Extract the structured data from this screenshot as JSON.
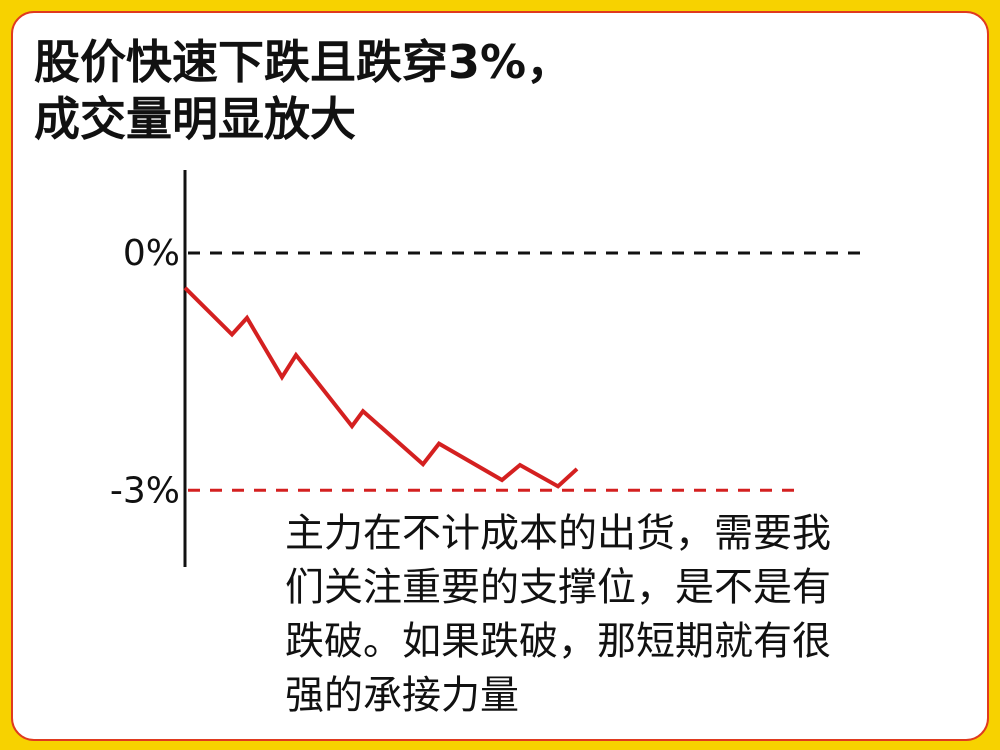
{
  "chart_data": {
    "type": "line",
    "title_lines": [
      "股价快速下跌且跌穿3%，",
      "成交量明显放大"
    ],
    "x": [
      0,
      47,
      62,
      97,
      111,
      167,
      178,
      238,
      254,
      317,
      335,
      373,
      392
    ],
    "xlim": [
      0,
      680
    ],
    "values": [
      -0.44,
      -1.03,
      -0.82,
      -1.57,
      -1.29,
      -2.19,
      -2.0,
      -2.67,
      -2.41,
      -2.87,
      -2.68,
      -2.95,
      -2.73
    ],
    "color": "#d42020",
    "ylim": [
      -3.97,
      1.05
    ],
    "yticks": [
      {
        "value": 0,
        "label": "0%"
      },
      {
        "value": -3,
        "label": "-3%"
      }
    ],
    "grid_colors": [
      "#111111",
      "#d42020"
    ],
    "annotation_lines": [
      "主力在不计成本的出货，需要我",
      "们关注重要的支撑位，是不是有",
      "跌破。如果跌破，那短期就有很",
      "强的承接力量"
    ]
  }
}
